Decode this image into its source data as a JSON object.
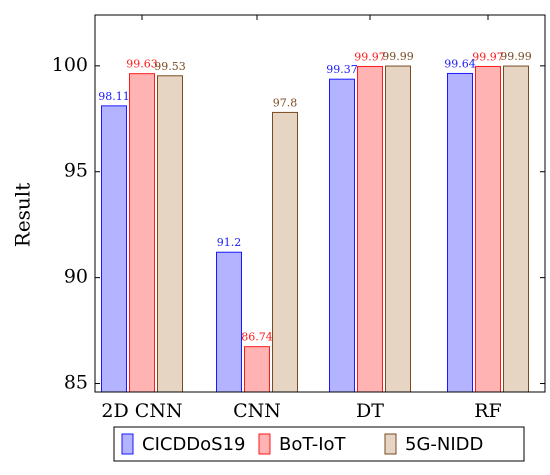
{
  "chart_data": {
    "type": "bar",
    "title": "",
    "xlabel": "",
    "ylabel": "Result",
    "ylim": [
      84.6,
      102.4
    ],
    "yticks": [
      85,
      90,
      95,
      100
    ],
    "grid": false,
    "legend_position": "bottom",
    "categories": [
      "2D CNN",
      "CNN",
      "DT",
      "RF"
    ],
    "series": [
      {
        "name": "CICDDoS19",
        "values": [
          98.11,
          91.2,
          99.37,
          99.64
        ],
        "labels": [
          "98.11",
          "91.2",
          "99.37",
          "99.64"
        ],
        "fill": "#b3b3ff",
        "stroke": "#1a1aff",
        "label_color": "#1a1aff"
      },
      {
        "name": "BoT-IoT",
        "values": [
          99.63,
          86.74,
          99.97,
          99.97
        ],
        "labels": [
          "99.63",
          "86.74",
          "99.97",
          "99.97"
        ],
        "fill": "#ffb3b3",
        "stroke": "#ff1a1a",
        "label_color": "#ff1a1a"
      },
      {
        "name": "5G-NIDD",
        "values": [
          99.53,
          97.8,
          99.99,
          99.99
        ],
        "labels": [
          "99.53",
          "97.8",
          "99.99",
          "99.99"
        ],
        "fill": "#e6d5c3",
        "stroke": "#7a4a22",
        "label_color": "#7a4a22"
      }
    ]
  }
}
